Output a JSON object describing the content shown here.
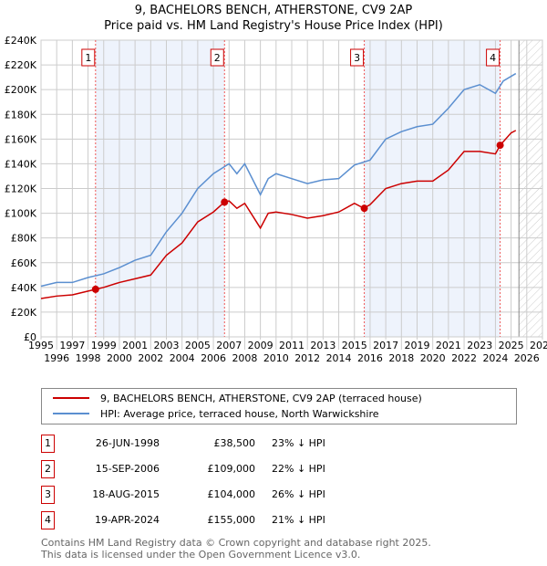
{
  "chart_data": {
    "type": "line",
    "title": "9, BACHELORS BENCH, ATHERSTONE, CV9 2AP",
    "subtitle": "Price paid vs. HM Land Registry's House Price Index (HPI)",
    "xlim": [
      1995,
      2027
    ],
    "ylim": [
      0,
      240000
    ],
    "xticks": [
      "1995",
      "1996",
      "1997",
      "1998",
      "1999",
      "2000",
      "2001",
      "2002",
      "2003",
      "2004",
      "2005",
      "2006",
      "2007",
      "2008",
      "2009",
      "2010",
      "2011",
      "2012",
      "2013",
      "2014",
      "2015",
      "2016",
      "2017",
      "2018",
      "2019",
      "2020",
      "2021",
      "2022",
      "2023",
      "2024",
      "2025",
      "2026",
      "2027"
    ],
    "yticks": [
      "£0",
      "£20K",
      "£40K",
      "£60K",
      "£80K",
      "£100K",
      "£120K",
      "£140K",
      "£160K",
      "£180K",
      "£200K",
      "£220K",
      "£240K"
    ],
    "grid": true,
    "data_end_year": 2025.5,
    "series": [
      {
        "name": "9, BACHELORS BENCH, ATHERSTONE, CV9 2AP (terraced house)",
        "color": "#cc0000",
        "x": [
          1995,
          1996,
          1997,
          1998,
          1998.5,
          1999,
          2000,
          2001,
          2002,
          2003,
          2004,
          2005,
          2006,
          2006.7,
          2007,
          2007.5,
          2008,
          2009,
          2009.5,
          2010,
          2011,
          2012,
          2013,
          2014,
          2015,
          2015.6,
          2016,
          2017,
          2018,
          2019,
          2020,
          2021,
          2022,
          2023,
          2024,
          2024.3,
          2025,
          2025.3
        ],
        "y": [
          31000,
          33000,
          34000,
          37000,
          38500,
          40000,
          44000,
          47000,
          50000,
          66000,
          76000,
          93000,
          101000,
          109000,
          110000,
          104000,
          108000,
          88000,
          100000,
          101000,
          99000,
          96000,
          98000,
          101000,
          108000,
          104000,
          107000,
          120000,
          124000,
          126000,
          126000,
          135000,
          150000,
          150000,
          148000,
          155000,
          165000,
          167000
        ]
      },
      {
        "name": "HPI: Average price, terraced house, North Warwickshire",
        "color": "#5b8fd0",
        "x": [
          1995,
          1996,
          1997,
          1998,
          1999,
          2000,
          2001,
          2002,
          2003,
          2004,
          2005,
          2006,
          2007,
          2007.5,
          2008,
          2009,
          2009.5,
          2010,
          2011,
          2012,
          2013,
          2014,
          2015,
          2016,
          2017,
          2018,
          2019,
          2020,
          2021,
          2022,
          2023,
          2024,
          2024.5,
          2025.3
        ],
        "y": [
          41000,
          44000,
          44000,
          48000,
          51000,
          56000,
          62000,
          66000,
          85000,
          100000,
          120000,
          132000,
          140000,
          132000,
          140000,
          115000,
          128000,
          132000,
          128000,
          124000,
          127000,
          128000,
          139000,
          143000,
          160000,
          166000,
          170000,
          172000,
          185000,
          200000,
          204000,
          197000,
          207000,
          213000
        ]
      }
    ],
    "sales": [
      {
        "label": "1",
        "year": 1998.48,
        "price": 38500,
        "date": "26-JUN-1998",
        "price_text": "£38,500",
        "hpi": "23% ↓ HPI"
      },
      {
        "label": "2",
        "year": 2006.71,
        "price": 109000,
        "date": "15-SEP-2006",
        "price_text": "£109,000",
        "hpi": "22% ↓ HPI"
      },
      {
        "label": "3",
        "year": 2015.63,
        "price": 104000,
        "date": "18-AUG-2015",
        "price_text": "£104,000",
        "hpi": "26% ↓ HPI"
      },
      {
        "label": "4",
        "year": 2024.3,
        "price": 155000,
        "date": "19-APR-2024",
        "price_text": "£155,000",
        "hpi": "21% ↓ HPI"
      }
    ]
  },
  "footer": {
    "line1": "Contains HM Land Registry data © Crown copyright and database right 2025.",
    "line2": "This data is licensed under the Open Government Licence v3.0."
  }
}
